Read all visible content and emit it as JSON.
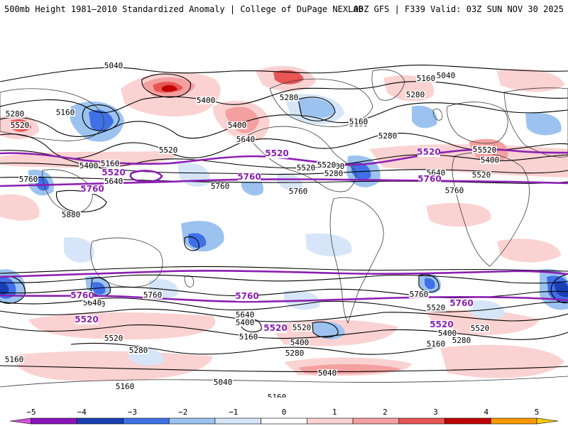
{
  "header": {
    "title_left": "500mb Height 1981–2010 Standardized Anomaly | College of DuPage NEXLAB",
    "title_right": "00Z GFS | F339 Valid: 03Z SUN NOV 30 2025"
  },
  "colors": {
    "contour": "#000000",
    "highlight": "#8b1fb3",
    "coast": "#3a3a3a"
  },
  "contour_labels": [
    {
      "text": "5040"
    },
    {
      "text": "5160"
    },
    {
      "text": "5040"
    },
    {
      "text": "5280"
    },
    {
      "text": "5280"
    },
    {
      "text": "5400"
    },
    {
      "text": "5280"
    },
    {
      "text": "5160"
    },
    {
      "text": "5520"
    },
    {
      "text": "5400"
    },
    {
      "text": "5160"
    },
    {
      "text": "5640"
    },
    {
      "text": "5520"
    },
    {
      "text": "5280"
    },
    {
      "text": "5400"
    },
    {
      "text": "5160"
    },
    {
      "text": "5520"
    },
    {
      "text": "5400"
    },
    {
      "text": "5640"
    },
    {
      "text": "5520"
    },
    {
      "text": "5760"
    },
    {
      "text": "5640"
    },
    {
      "text": "5520"
    },
    {
      "text": "5760"
    },
    {
      "text": "5760"
    },
    {
      "text": "5760"
    },
    {
      "text": "5880"
    },
    {
      "text": "5640"
    },
    {
      "text": "5760"
    },
    {
      "text": "5640"
    },
    {
      "text": "5400"
    },
    {
      "text": "5520"
    },
    {
      "text": "5160"
    },
    {
      "text": "5280"
    },
    {
      "text": "5520"
    },
    {
      "text": "5400"
    },
    {
      "text": "5280"
    },
    {
      "text": "5040"
    },
    {
      "text": "5160"
    },
    {
      "text": "5160"
    },
    {
      "text": "5040"
    },
    {
      "text": "5160"
    },
    {
      "text": "5640"
    },
    {
      "text": "5520"
    },
    {
      "text": "5400"
    },
    {
      "text": "5280"
    },
    {
      "text": "5160"
    },
    {
      "text": "5760"
    },
    {
      "text": "5520"
    },
    {
      "text": "5520"
    },
    {
      "text": "5520"
    },
    {
      "text": "5400"
    },
    {
      "text": "5160"
    },
    {
      "text": "5280"
    }
  ],
  "purple_labels": [
    {
      "text": "5520"
    },
    {
      "text": "5520"
    },
    {
      "text": "5520"
    },
    {
      "text": "5760"
    },
    {
      "text": "5760"
    },
    {
      "text": "5760"
    },
    {
      "text": "5760"
    },
    {
      "text": "5760"
    },
    {
      "text": "5760"
    },
    {
      "text": "5520"
    },
    {
      "text": "5520"
    },
    {
      "text": "5520"
    }
  ],
  "legend": {
    "ticks": [
      "−5",
      "−4",
      "−3",
      "−2",
      "−1",
      "0",
      "1",
      "2",
      "3",
      "4",
      "5"
    ],
    "colors": [
      "#d24fe0",
      "#8a14b8",
      "#1a3fb5",
      "#3f70e6",
      "#9cc3f0",
      "#d6e6f8",
      "#ffffff",
      "#fbd2d2",
      "#f4a0a0",
      "#e85555",
      "#c00000",
      "#ff9a00",
      "#ffcc00"
    ]
  }
}
